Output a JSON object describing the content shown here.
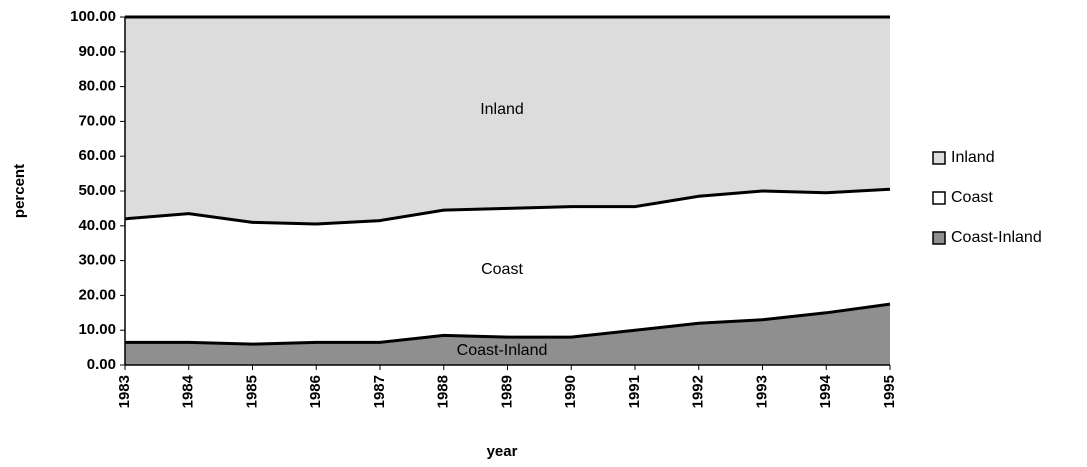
{
  "chart_data": {
    "type": "stacked-area",
    "x_label": "year",
    "y_label": "percent",
    "categories": [
      "1983",
      "1984",
      "1985",
      "1986",
      "1987",
      "1988",
      "1989",
      "1990",
      "1991",
      "1992",
      "1993",
      "1994",
      "1995"
    ],
    "series": [
      {
        "name": "Coast-Inland",
        "color": "#8f8f8f",
        "values": [
          6.5,
          6.5,
          6,
          6.5,
          6.5,
          8.5,
          8,
          8,
          10,
          12,
          13,
          15,
          17.5
        ]
      },
      {
        "name": "Coast",
        "color": "#ffffff",
        "values": [
          35.5,
          37,
          35,
          34,
          35,
          36,
          37,
          37.5,
          35.5,
          36.5,
          37,
          34.5,
          33
        ]
      },
      {
        "name": "Inland",
        "color": "#dcdcdc",
        "values": [
          58,
          56.5,
          59,
          59.5,
          58.5,
          55.5,
          55,
          54.5,
          54.5,
          51.5,
          50,
          50.5,
          49.5
        ]
      }
    ],
    "ylim": [
      0,
      100
    ],
    "yticks": [
      {
        "value": 0,
        "label": "0.00"
      },
      {
        "value": 10,
        "label": "10.00"
      },
      {
        "value": 20,
        "label": "20.00"
      },
      {
        "value": 30,
        "label": "30.00"
      },
      {
        "value": 40,
        "label": "40.00"
      },
      {
        "value": 50,
        "label": "50.00"
      },
      {
        "value": 60,
        "label": "60.00"
      },
      {
        "value": 70,
        "label": "70.00"
      },
      {
        "value": 80,
        "label": "80.00"
      },
      {
        "value": 90,
        "label": "90.00"
      },
      {
        "value": 100,
        "label": "100.00"
      }
    ],
    "legend": "right"
  }
}
